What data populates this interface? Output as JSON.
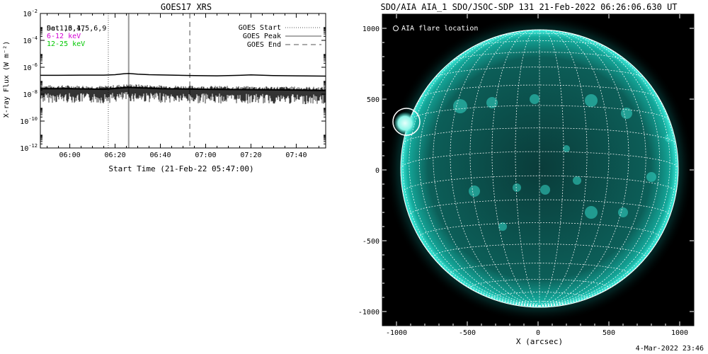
{
  "chart_data": [
    {
      "type": "line",
      "title": "GOES17 XRS",
      "xlabel": "Start Time (21-Feb-22 05:47:00)",
      "ylabel": "X-ray Flux (W m⁻²)",
      "y_scale": "log",
      "ylim_exponents": [
        -12,
        -2
      ],
      "y_tick_exponents": [
        -12,
        -10,
        -8,
        -6,
        -4,
        -2
      ],
      "x_range": [
        "05:47",
        "07:53"
      ],
      "x_tick_labels": [
        "06:00",
        "06:20",
        "06:40",
        "07:00",
        "07:20",
        "07:40"
      ],
      "grid": false,
      "channel_labels": [
        {
          "text": "Sat 16,17",
          "color": "#000000"
        },
        {
          "text": "Det1,3,4,5,6,9",
          "color": "#000000"
        },
        {
          "text": "6-12 keV",
          "color": "#d400d4"
        },
        {
          "text": "12-25 keV",
          "color": "#00c800"
        }
      ],
      "legend": [
        {
          "label": "GOES Start",
          "style": "dotted",
          "time": "06:17"
        },
        {
          "label": "GOES Peak",
          "style": "solid",
          "time": "06:26"
        },
        {
          "label": "GOES End",
          "style": "dashed",
          "time": "06:53"
        }
      ],
      "legend_position": "top-right",
      "series": [
        {
          "color": "#000000",
          "x": [
            "05:47",
            "05:55",
            "06:05",
            "06:15",
            "06:20",
            "06:24",
            "06:26",
            "06:30",
            "06:35",
            "06:45",
            "06:55",
            "07:05",
            "07:15",
            "07:20",
            "07:30",
            "07:40",
            "07:53"
          ],
          "values": [
            2.5e-07,
            2.5e-07,
            2.6e-07,
            2.6e-07,
            2.8e-07,
            3.3e-07,
            3.5e-07,
            3.1e-07,
            2.8e-07,
            2.6e-07,
            2.4e-07,
            2.3e-07,
            2.5e-07,
            2.7e-07,
            2.4e-07,
            2.3e-07,
            2.2e-07
          ]
        },
        {
          "color": "#000000",
          "x": [
            "05:47",
            "06:00",
            "06:15",
            "06:26",
            "06:40",
            "07:00",
            "07:20",
            "07:40",
            "07:53"
          ],
          "values": [
            2e-08,
            2e-08,
            1.8e-08,
            2.5e-08,
            2e-08,
            1.8e-08,
            1.7e-08,
            1.6e-08,
            1.5e-08
          ]
        }
      ]
    },
    {
      "type": "scatter",
      "title": "SDO/AIA AIA_1 SDO/JSOC-SDP 131 21-Feb-2022 06:26:06.630 UT",
      "xlabel": "X (arcsec)",
      "ylabel": "",
      "xlim": [
        -1100,
        1100
      ],
      "ylim": [
        -1100,
        1100
      ],
      "x_ticks": [
        -1000,
        -500,
        0,
        500,
        1000
      ],
      "y_ticks": [
        -1000,
        -500,
        0,
        500,
        1000
      ],
      "legend": [
        {
          "label": "AIA flare location",
          "marker": "circle"
        }
      ],
      "legend_position": "top-left",
      "series": [
        {
          "name": "AIA flare location",
          "x": [
            -930
          ],
          "y": [
            340
          ]
        }
      ]
    }
  ],
  "footer": {
    "date": "4-Mar-2022 23:46"
  },
  "colors": {
    "disk_teal": "#0fb5a5",
    "background": "#000000",
    "grid": "#ffffff"
  }
}
